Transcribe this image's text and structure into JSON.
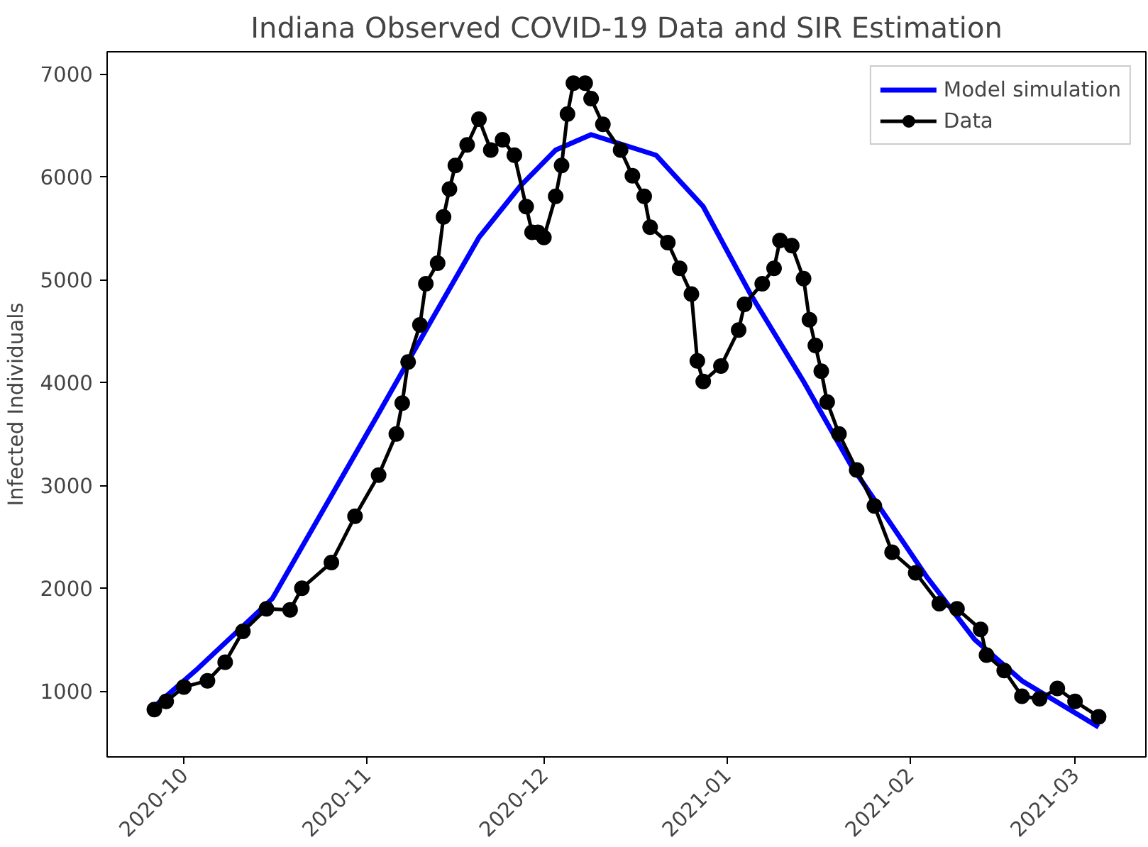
{
  "chart_data": {
    "type": "line",
    "title": "Indiana Observed COVID-19 Data and SIR Estimation",
    "ylabel": "Infected Individuals",
    "xlim": [
      "2020-09-18",
      "2021-03-13"
    ],
    "xticks": [
      {
        "value": "2020-10-01",
        "label": "2020-10"
      },
      {
        "value": "2020-11-01",
        "label": "2020-11"
      },
      {
        "value": "2020-12-01",
        "label": "2020-12"
      },
      {
        "value": "2021-01-01",
        "label": "2021-01"
      },
      {
        "value": "2021-02-01",
        "label": "2021-02"
      },
      {
        "value": "2021-03-01",
        "label": "2021-03"
      }
    ],
    "ylim": [
      360,
      7215
    ],
    "yticks": [
      1000,
      2000,
      3000,
      4000,
      5000,
      6000,
      7000
    ],
    "grid": false,
    "legend": "top right",
    "series": [
      {
        "name": "Model simulation",
        "color": "#0000ff",
        "marker": "none",
        "x": [
          "2020-09-26",
          "2020-10-03",
          "2020-10-16",
          "2020-10-26",
          "2020-11-03",
          "2020-11-12",
          "2020-11-20",
          "2020-11-27",
          "2020-12-03",
          "2020-12-09",
          "2020-12-20",
          "2020-12-28",
          "2021-01-05",
          "2021-01-14",
          "2021-01-22",
          "2021-02-04",
          "2021-02-12",
          "2021-02-20",
          "2021-03-05"
        ],
        "values": [
          850,
          1200,
          1900,
          2900,
          3700,
          4610,
          5410,
          5910,
          6260,
          6410,
          6210,
          5710,
          4860,
          4010,
          3200,
          2100,
          1500,
          1100,
          650
        ]
      },
      {
        "name": "Data",
        "color": "#000000",
        "marker": "circle",
        "x": [
          "2020-09-26",
          "2020-09-28",
          "2020-10-01",
          "2020-10-05",
          "2020-10-08",
          "2020-10-11",
          "2020-10-15",
          "2020-10-19",
          "2020-10-21",
          "2020-10-26",
          "2020-10-30",
          "2020-11-03",
          "2020-11-06",
          "2020-11-07",
          "2020-11-08",
          "2020-11-10",
          "2020-11-11",
          "2020-11-13",
          "2020-11-14",
          "2020-11-15",
          "2020-11-16",
          "2020-11-18",
          "2020-11-20",
          "2020-11-22",
          "2020-11-24",
          "2020-11-26",
          "2020-11-28",
          "2020-11-29",
          "2020-11-30",
          "2020-12-01",
          "2020-12-03",
          "2020-12-04",
          "2020-12-05",
          "2020-12-06",
          "2020-12-08",
          "2020-12-09",
          "2020-12-11",
          "2020-12-14",
          "2020-12-16",
          "2020-12-18",
          "2020-12-19",
          "2020-12-22",
          "2020-12-24",
          "2020-12-26",
          "2020-12-27",
          "2020-12-28",
          "2020-12-31",
          "2021-01-03",
          "2021-01-04",
          "2021-01-07",
          "2021-01-09",
          "2021-01-10",
          "2021-01-12",
          "2021-01-14",
          "2021-01-15",
          "2021-01-16",
          "2021-01-17",
          "2021-01-18",
          "2021-01-20",
          "2021-01-23",
          "2021-01-26",
          "2021-01-29",
          "2021-02-02",
          "2021-02-06",
          "2021-02-09",
          "2021-02-13",
          "2021-02-14",
          "2021-02-17",
          "2021-02-20",
          "2021-02-23",
          "2021-02-26",
          "2021-03-01",
          "2021-03-05"
        ],
        "values": [
          820,
          900,
          1040,
          1100,
          1280,
          1580,
          1800,
          1790,
          2000,
          2250,
          2700,
          3100,
          3500,
          3800,
          4200,
          4560,
          4960,
          5160,
          5610,
          5880,
          6110,
          6310,
          6560,
          6260,
          6360,
          6210,
          5710,
          5460,
          5460,
          5410,
          5810,
          6110,
          6610,
          6910,
          6910,
          6760,
          6510,
          6260,
          6010,
          5810,
          5510,
          5360,
          5110,
          4860,
          4210,
          4010,
          4160,
          4510,
          4760,
          4960,
          5110,
          5380,
          5330,
          5010,
          4610,
          4360,
          4110,
          3810,
          3500,
          3150,
          2800,
          2350,
          2150,
          1850,
          1800,
          1600,
          1350,
          1200,
          950,
          925,
          1025,
          900,
          750
        ]
      }
    ]
  }
}
